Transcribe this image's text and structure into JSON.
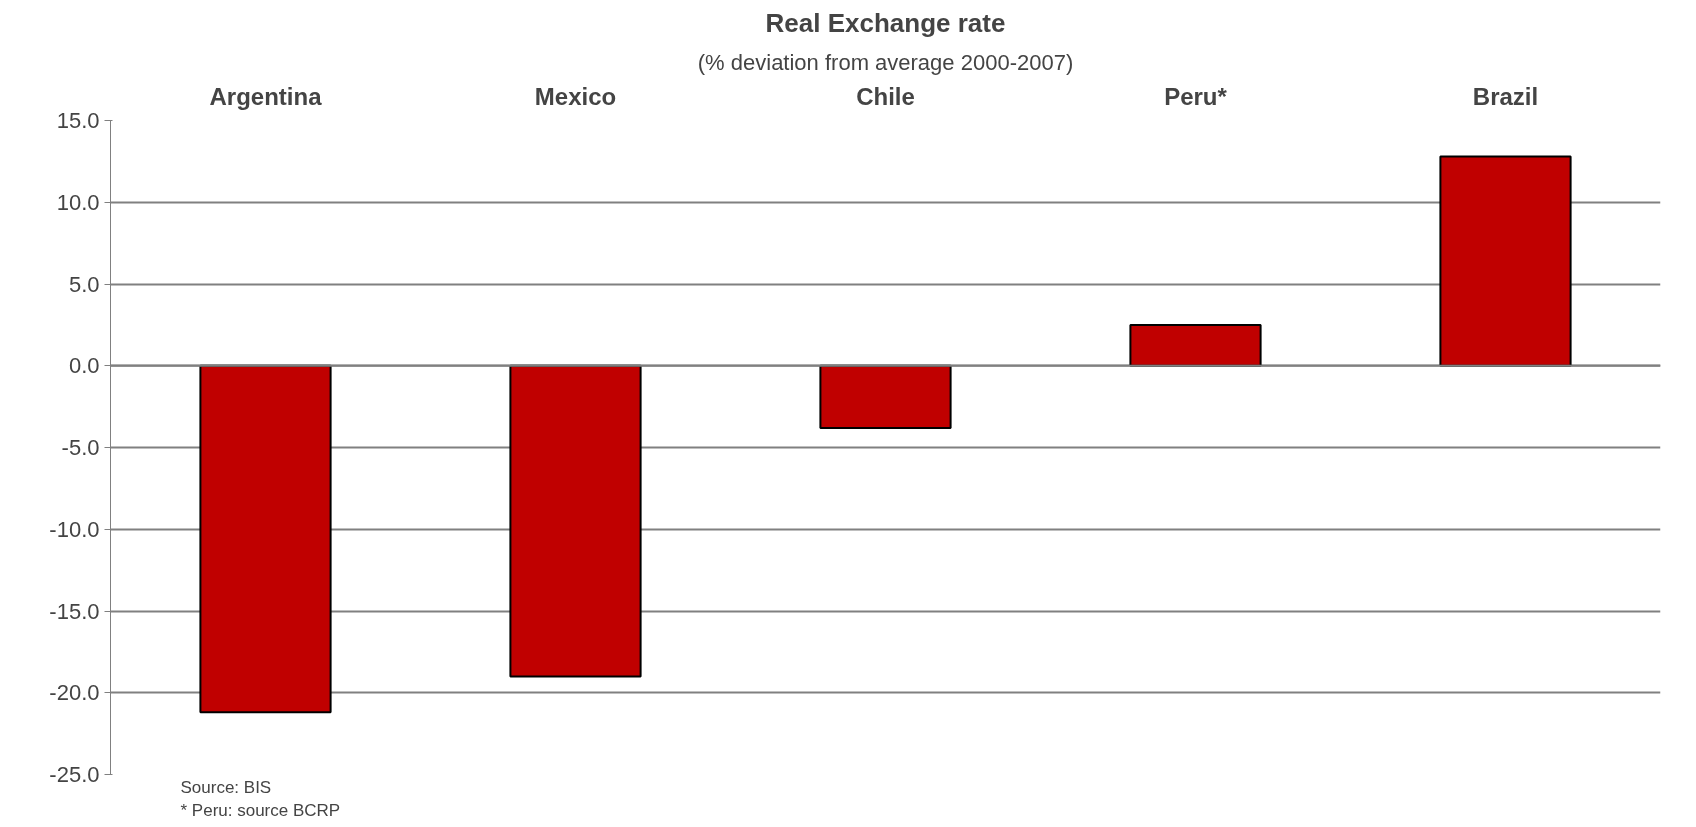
{
  "chart_data": {
    "type": "bar",
    "title": "Real Exchange rate",
    "subtitle": "(% deviation from average 2000-2007)",
    "categories": [
      "Argentina",
      "Mexico",
      "Chile",
      "Peru*",
      "Brazil"
    ],
    "values": [
      -21.2,
      -19.0,
      -3.8,
      2.5,
      12.8
    ],
    "color": "#c00000",
    "ylim": [
      -25,
      15
    ],
    "yticks": [
      {
        "value": -25,
        "label": "-25.0"
      },
      {
        "value": -20,
        "label": "-20.0"
      },
      {
        "value": -15,
        "label": "-15.0"
      },
      {
        "value": -10,
        "label": "-10.0"
      },
      {
        "value": -5,
        "label": "-5.0"
      },
      {
        "value": 0,
        "label": "0.0"
      },
      {
        "value": 5,
        "label": "5.0"
      },
      {
        "value": 10,
        "label": "10.0"
      },
      {
        "value": 15,
        "label": "15.0"
      }
    ],
    "grid": "y",
    "annotations": [
      "Source: BIS",
      "* Peru: source BCRP"
    ]
  }
}
